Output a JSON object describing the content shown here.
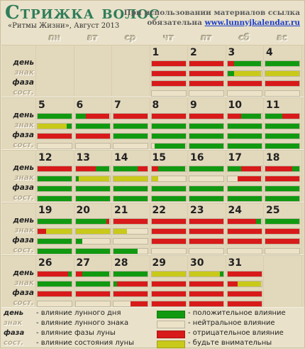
{
  "header": {
    "title": "Стрижка волос",
    "subtitle": "«Ритмы Жизни», Август 2013",
    "note_line1": "При использовании материалов ссылка",
    "note_line2": "обязательна",
    "note_link": "www.lunnyjkalendar.ru"
  },
  "weekdays": [
    "пн",
    "вт",
    "ср",
    "чт",
    "пт",
    "сб",
    "вс"
  ],
  "row_labels": [
    "день",
    "знак",
    "фаза",
    "сост."
  ],
  "colors": {
    "g": "#119a11",
    "r": "#d81a1a",
    "y": "#c9c91a",
    "e": "#ece2c7"
  },
  "weeks": [
    {
      "days": [
        {
          "col": 3,
          "num": "1",
          "bars": [
            [
              "r:1"
            ],
            [
              "r:1"
            ],
            [
              "r:1"
            ],
            [
              "e:1"
            ]
          ]
        },
        {
          "col": 4,
          "num": "2",
          "bars": [
            [
              "r:1"
            ],
            [
              "r:1"
            ],
            [
              "r:1"
            ],
            [
              "e:1"
            ]
          ]
        },
        {
          "col": 5,
          "num": "3",
          "bars": [
            [
              "r:0.2",
              "g:0.8"
            ],
            [
              "g:0.2",
              "y:0.8"
            ],
            [
              "r:1"
            ],
            [
              "e:1"
            ]
          ]
        },
        {
          "col": 6,
          "num": "4",
          "bars": [
            [
              "g:1"
            ],
            [
              "y:1"
            ],
            [
              "r:1"
            ],
            [
              "e:1"
            ]
          ]
        }
      ]
    },
    {
      "days": [
        {
          "col": 0,
          "num": "5",
          "bars": [
            [
              "g:1"
            ],
            [
              "y:0.85",
              "g:0.15"
            ],
            [
              "r:1"
            ],
            [
              "e:1"
            ]
          ]
        },
        {
          "col": 1,
          "num": "6",
          "bars": [
            [
              "g:0.3",
              "r:0.7"
            ],
            [
              "g:1"
            ],
            [
              "r:1"
            ],
            [
              "e:1"
            ]
          ]
        },
        {
          "col": 2,
          "num": "7",
          "bars": [
            [
              "r:1"
            ],
            [
              "g:1"
            ],
            [
              "g:1"
            ],
            [
              "e:1"
            ]
          ]
        },
        {
          "col": 3,
          "num": "8",
          "bars": [
            [
              "r:1"
            ],
            [
              "g:1"
            ],
            [
              "g:1"
            ],
            [
              "e:0.1",
              "g:0.9"
            ]
          ]
        },
        {
          "col": 4,
          "num": "9",
          "bars": [
            [
              "r:1"
            ],
            [
              "g:1"
            ],
            [
              "g:1"
            ],
            [
              "g:1"
            ]
          ]
        },
        {
          "col": 5,
          "num": "10",
          "bars": [
            [
              "r:0.4",
              "g:0.6"
            ],
            [
              "g:1"
            ],
            [
              "g:1"
            ],
            [
              "g:1"
            ]
          ]
        },
        {
          "col": 6,
          "num": "11",
          "bars": [
            [
              "g:0.5",
              "r:0.5"
            ],
            [
              "g:1"
            ],
            [
              "g:1"
            ],
            [
              "g:1"
            ]
          ]
        }
      ]
    },
    {
      "days": [
        {
          "col": 0,
          "num": "12",
          "bars": [
            [
              "r:1"
            ],
            [
              "g:1"
            ],
            [
              "g:1"
            ],
            [
              "g:1"
            ]
          ]
        },
        {
          "col": 1,
          "num": "13",
          "bars": [
            [
              "r:0.6",
              "g:0.4"
            ],
            [
              "g:0.1",
              "y:0.9"
            ],
            [
              "g:1"
            ],
            [
              "g:1"
            ]
          ]
        },
        {
          "col": 2,
          "num": "14",
          "bars": [
            [
              "g:0.7",
              "r:0.3"
            ],
            [
              "y:1"
            ],
            [
              "g:1"
            ],
            [
              "g:1"
            ]
          ]
        },
        {
          "col": 3,
          "num": "15",
          "bars": [
            [
              "r:0.2",
              "g:0.8"
            ],
            [
              "y:0.2",
              "e:0.8"
            ],
            [
              "g:1"
            ],
            [
              "g:1"
            ]
          ]
        },
        {
          "col": 4,
          "num": "16",
          "bars": [
            [
              "g:1"
            ],
            [
              "e:1"
            ],
            [
              "g:1"
            ],
            [
              "g:1"
            ]
          ]
        },
        {
          "col": 5,
          "num": "17",
          "bars": [
            [
              "g:0.4",
              "r:0.6"
            ],
            [
              "e:0.3",
              "r:0.7"
            ],
            [
              "g:1"
            ],
            [
              "g:1"
            ]
          ]
        },
        {
          "col": 6,
          "num": "18",
          "bars": [
            [
              "r:0.8",
              "g:0.2"
            ],
            [
              "r:1"
            ],
            [
              "g:1"
            ],
            [
              "g:1"
            ]
          ]
        }
      ]
    },
    {
      "days": [
        {
          "col": 0,
          "num": "19",
          "bars": [
            [
              "g:1"
            ],
            [
              "r:0.25",
              "y:0.75"
            ],
            [
              "g:1"
            ],
            [
              "g:1"
            ]
          ]
        },
        {
          "col": 1,
          "num": "20",
          "bars": [
            [
              "g:0.9",
              "r:0.1"
            ],
            [
              "y:1"
            ],
            [
              "g:0.2",
              "e:0.8"
            ],
            [
              "g:1"
            ]
          ]
        },
        {
          "col": 2,
          "num": "21",
          "bars": [
            [
              "r:1"
            ],
            [
              "y:0.4",
              "e:0.6"
            ],
            [
              "e:1"
            ],
            [
              "g:0.7",
              "e:0.3"
            ]
          ]
        },
        {
          "col": 3,
          "num": "22",
          "bars": [
            [
              "r:1"
            ],
            [
              "r:1"
            ],
            [
              "r:1"
            ],
            [
              "e:1"
            ]
          ]
        },
        {
          "col": 4,
          "num": "23",
          "bars": [
            [
              "r:1"
            ],
            [
              "r:1"
            ],
            [
              "r:1"
            ],
            [
              "e:1"
            ]
          ]
        },
        {
          "col": 5,
          "num": "24",
          "bars": [
            [
              "r:0.85",
              "g:0.15"
            ],
            [
              "r:1"
            ],
            [
              "r:1"
            ],
            [
              "e:1"
            ]
          ]
        },
        {
          "col": 6,
          "num": "25",
          "bars": [
            [
              "g:1"
            ],
            [
              "r:1"
            ],
            [
              "r:1"
            ],
            [
              "e:1"
            ]
          ]
        }
      ]
    },
    {
      "days": [
        {
          "col": 0,
          "num": "26",
          "bars": [
            [
              "r:0.9",
              "g:0.1"
            ],
            [
              "g:1"
            ],
            [
              "r:1"
            ],
            [
              "e:1"
            ]
          ]
        },
        {
          "col": 1,
          "num": "27",
          "bars": [
            [
              "r:0.2",
              "g:0.8"
            ],
            [
              "g:1"
            ],
            [
              "r:1"
            ],
            [
              "e:1"
            ]
          ]
        },
        {
          "col": 2,
          "num": "28",
          "bars": [
            [
              "g:1"
            ],
            [
              "g:0.1",
              "r:0.9"
            ],
            [
              "r:1"
            ],
            [
              "e:0.5",
              "r:0.5"
            ]
          ]
        },
        {
          "col": 3,
          "num": "29",
          "bars": [
            [
              "y:1"
            ],
            [
              "r:1"
            ],
            [
              "r:1"
            ],
            [
              "r:1"
            ]
          ]
        },
        {
          "col": 4,
          "num": "30",
          "bars": [
            [
              "y:0.9",
              "g:0.1"
            ],
            [
              "r:1"
            ],
            [
              "r:1"
            ],
            [
              "r:1"
            ]
          ]
        },
        {
          "col": 5,
          "num": "31",
          "bars": [
            [
              "r:1"
            ],
            [
              "r:0.3",
              "y:0.7"
            ],
            [
              "r:1"
            ],
            [
              "r:1"
            ]
          ]
        }
      ]
    }
  ],
  "legend": {
    "left": [
      {
        "label": "день",
        "text": "- влияние лунного дня"
      },
      {
        "label": "знак",
        "text": "- влияние лунного знака"
      },
      {
        "label": "фаза",
        "text": "- влияние фазы луны"
      },
      {
        "label": "сост.",
        "text": "- влияние состояния луны"
      }
    ],
    "right": [
      {
        "color": "g",
        "text": "- положительное влияние"
      },
      {
        "color": "e",
        "text": "- нейтральное влияние"
      },
      {
        "color": "r",
        "text": "- отрицательное влияние"
      },
      {
        "color": "y",
        "text": "- будьте внимательны"
      }
    ]
  }
}
